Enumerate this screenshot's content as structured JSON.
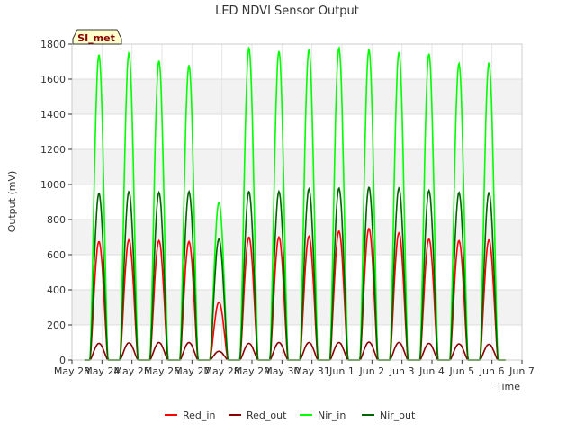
{
  "chart_data": {
    "type": "line",
    "title": "LED NDVI Sensor Output",
    "xlabel": "Time",
    "ylabel": "Output (mV)",
    "ylim": [
      0,
      1800
    ],
    "yticks": [
      0,
      200,
      400,
      600,
      800,
      1000,
      1200,
      1400,
      1600,
      1800
    ],
    "xlim": [
      0,
      15
    ],
    "xticks": [
      {
        "x": 0,
        "label": "May 23"
      },
      {
        "x": 1,
        "label": "May 24"
      },
      {
        "x": 2,
        "label": "May 25"
      },
      {
        "x": 3,
        "label": "May 26"
      },
      {
        "x": 4,
        "label": "May 27"
      },
      {
        "x": 5,
        "label": "May 28"
      },
      {
        "x": 6,
        "label": "May 29"
      },
      {
        "x": 7,
        "label": "May 30"
      },
      {
        "x": 8,
        "label": "May 31"
      },
      {
        "x": 9,
        "label": "Jun 1"
      },
      {
        "x": 10,
        "label": "Jun 2"
      },
      {
        "x": 11,
        "label": "Jun 3"
      },
      {
        "x": 12,
        "label": "Jun 4"
      },
      {
        "x": 13,
        "label": "Jun 5"
      },
      {
        "x": 14,
        "label": "Jun 6"
      },
      {
        "x": 15,
        "label": "Jun 7"
      }
    ],
    "grid_bands": true,
    "badge": "SI_met",
    "legend_position": "bottom",
    "day_start": 0.42,
    "day_width": 0.6,
    "day_centers": [
      0.9,
      1.9,
      2.9,
      3.9,
      4.9,
      5.9,
      6.9,
      7.9,
      8.9,
      9.9,
      10.9,
      11.9,
      12.9,
      13.9
    ],
    "series": [
      {
        "name": "Red_in",
        "color": "#ff0000",
        "daily_peaks": [
          675,
          685,
          680,
          675,
          330,
          700,
          700,
          705,
          735,
          750,
          725,
          690,
          680,
          685
        ]
      },
      {
        "name": "Red_out",
        "color": "#8b0000",
        "daily_peaks": [
          95,
          98,
          100,
          100,
          50,
          95,
          100,
          100,
          100,
          102,
          100,
          95,
          92,
          90
        ]
      },
      {
        "name": "Nir_in",
        "color": "#00ff00",
        "daily_peaks": [
          1740,
          1750,
          1705,
          1680,
          900,
          1780,
          1760,
          1770,
          1780,
          1770,
          1755,
          1745,
          1690,
          1695
        ]
      },
      {
        "name": "Nir_out",
        "color": "#006400",
        "daily_peaks": [
          950,
          960,
          955,
          960,
          690,
          960,
          960,
          975,
          980,
          985,
          980,
          965,
          955,
          955
        ]
      }
    ]
  }
}
